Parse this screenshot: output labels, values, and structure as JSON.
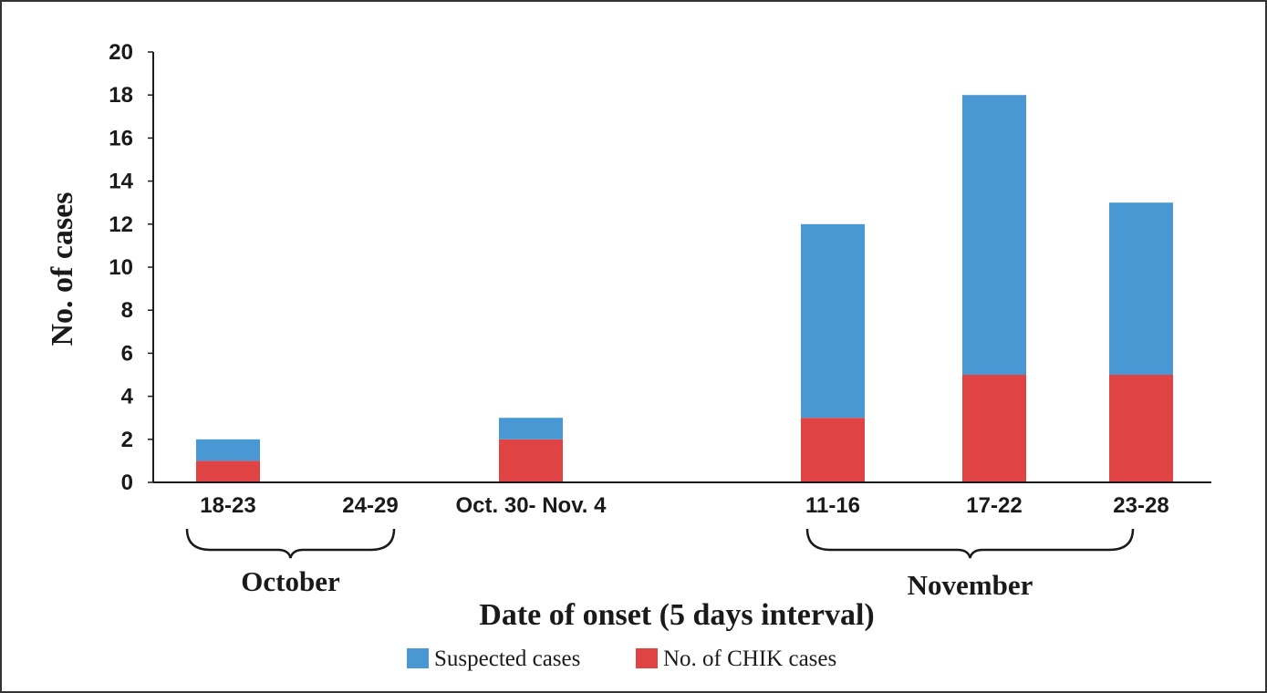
{
  "chart_data": {
    "type": "bar",
    "stacked": true,
    "categories": [
      "18-23",
      "24-29",
      "Oct. 30- Nov. 4",
      "11-16",
      "17-22",
      "23-28"
    ],
    "series": [
      {
        "name": "No. of CHIK cases",
        "color": "#e04343",
        "values": [
          1,
          0,
          2,
          3,
          5,
          5
        ]
      },
      {
        "name": "Suspected cases",
        "color": "#4a98d3",
        "values": [
          1,
          0,
          1,
          9,
          13,
          8
        ]
      }
    ],
    "ylabel": "No. of cases",
    "xlabel": "Date of onset (5 days interval)",
    "ylim": [
      0,
      20
    ],
    "yticks": [
      0,
      2,
      4,
      6,
      8,
      10,
      12,
      14,
      16,
      18,
      20
    ],
    "grid": false,
    "legend": {
      "position": "bottom",
      "order": [
        "Suspected cases",
        "No. of CHIK cases"
      ]
    },
    "groups": [
      {
        "label": "October",
        "from_index": 0,
        "to_index": 1
      },
      {
        "label": "November",
        "from_index": 3,
        "to_index": 5
      }
    ]
  }
}
